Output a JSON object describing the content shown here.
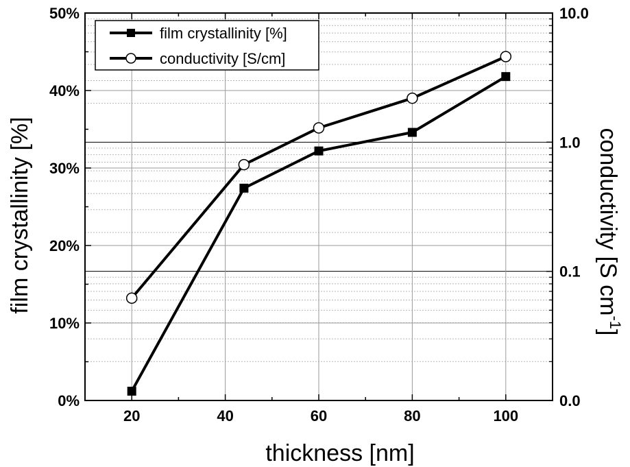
{
  "chart_data": {
    "type": "line",
    "xlabel": "thickness [nm]",
    "ylabel_left": "film crystallinity [%]",
    "ylabel_right": "conductivity [S cm",
    "ylabel_right_superscript": "-1",
    "ylabel_right_close": "]",
    "xlim": [
      10,
      110
    ],
    "ylim_left": [
      0,
      50
    ],
    "ylim_right": [
      0.01,
      10
    ],
    "right_axis_scale": "log",
    "x_ticks": [
      20,
      40,
      60,
      80,
      100
    ],
    "x_tick_labels": [
      "20",
      "40",
      "60",
      "80",
      "100"
    ],
    "left_ticks": [
      0,
      10,
      20,
      30,
      40,
      50
    ],
    "left_tick_labels": [
      "0%",
      "10%",
      "20%",
      "30%",
      "40%",
      "50%"
    ],
    "right_ticks": [
      0.01,
      0.1,
      1,
      10
    ],
    "right_tick_labels": [
      "0.0",
      "0.1",
      "1.0",
      "10.0"
    ],
    "grid": true,
    "legend_position": "top-left",
    "series": [
      {
        "name": "film crystallinity [%]",
        "axis": "left",
        "marker": "filled-square",
        "color": "#000000",
        "x": [
          20,
          44,
          60,
          80,
          100
        ],
        "y": [
          1.2,
          27.4,
          32.2,
          34.6,
          41.8
        ]
      },
      {
        "name": "conductivity [S/cm]",
        "axis": "right",
        "marker": "open-circle",
        "color": "#000000",
        "x": [
          20,
          44,
          60,
          80,
          100
        ],
        "y": [
          0.062,
          0.67,
          1.29,
          2.19,
          4.6
        ]
      }
    ]
  }
}
